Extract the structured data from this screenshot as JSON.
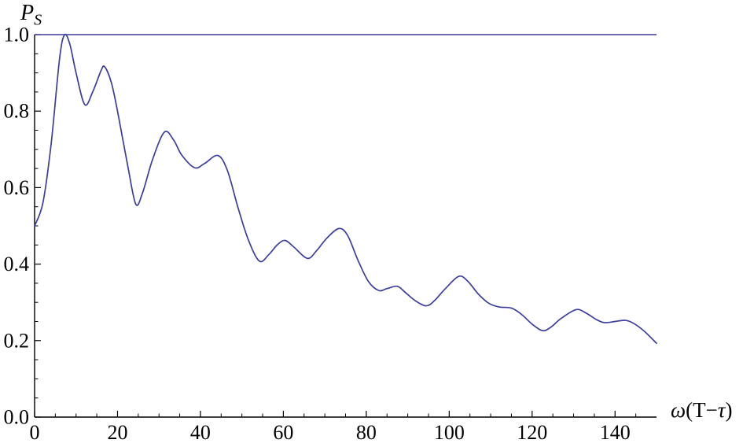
{
  "page": {
    "background": "#ffffff"
  },
  "chart_data": {
    "type": "line",
    "title": "",
    "ylabel": {
      "base": "P",
      "subscript": "S"
    },
    "xlabel": {
      "omega": "ω",
      "open_t": "(T−",
      "tau": "τ",
      "close": ")"
    },
    "xlim": [
      0,
      150
    ],
    "ylim": [
      0,
      1
    ],
    "grid": false,
    "legend": null,
    "axes": {
      "x_ticks": {
        "major": [
          0,
          20,
          40,
          60,
          80,
          100,
          120,
          140
        ],
        "labels": [
          "0",
          "20",
          "40",
          "60",
          "80",
          "100",
          "120",
          "140"
        ],
        "minor_step": 5
      },
      "y_ticks": {
        "major": [
          0,
          0.2,
          0.4,
          0.6,
          0.8,
          1.0
        ],
        "labels": [
          "0.0",
          "0.2",
          "0.4",
          "0.6",
          "0.8",
          "1.0"
        ],
        "minor_step": 0.05
      }
    },
    "colors": {
      "series": "#3c3d9e",
      "axis": "#000000",
      "text": "#000000"
    },
    "series": [
      {
        "name": "upper-bound-line",
        "type": "hline",
        "y": 1.0,
        "x_range": [
          0,
          150
        ]
      },
      {
        "name": "survival-probability",
        "type": "smooth-line",
        "points": [
          [
            0,
            0.5
          ],
          [
            2,
            0.56
          ],
          [
            4,
            0.715
          ],
          [
            6,
            0.935
          ],
          [
            7.2,
            0.999
          ],
          [
            8.5,
            0.975
          ],
          [
            10,
            0.9
          ],
          [
            12.1,
            0.817
          ],
          [
            14,
            0.85
          ],
          [
            16,
            0.905
          ],
          [
            16.9,
            0.916
          ],
          [
            18.5,
            0.875
          ],
          [
            20,
            0.8
          ],
          [
            22.5,
            0.655
          ],
          [
            24.4,
            0.557
          ],
          [
            26,
            0.585
          ],
          [
            28.5,
            0.675
          ],
          [
            31.3,
            0.745
          ],
          [
            33.5,
            0.725
          ],
          [
            35.5,
            0.685
          ],
          [
            38.6,
            0.652
          ],
          [
            41,
            0.663
          ],
          [
            44.2,
            0.684
          ],
          [
            46.5,
            0.645
          ],
          [
            49,
            0.55
          ],
          [
            51.5,
            0.465
          ],
          [
            54.2,
            0.408
          ],
          [
            56.5,
            0.425
          ],
          [
            58.5,
            0.45
          ],
          [
            60.4,
            0.462
          ],
          [
            62.5,
            0.445
          ],
          [
            65.8,
            0.415
          ],
          [
            68,
            0.435
          ],
          [
            70.5,
            0.468
          ],
          [
            73.4,
            0.493
          ],
          [
            75.5,
            0.475
          ],
          [
            78,
            0.41
          ],
          [
            80.5,
            0.355
          ],
          [
            83,
            0.331
          ],
          [
            85,
            0.336
          ],
          [
            87.5,
            0.342
          ],
          [
            89.5,
            0.325
          ],
          [
            92,
            0.303
          ],
          [
            94.5,
            0.291
          ],
          [
            96.5,
            0.305
          ],
          [
            99,
            0.335
          ],
          [
            102.3,
            0.368
          ],
          [
            104.5,
            0.355
          ],
          [
            107,
            0.322
          ],
          [
            109.5,
            0.298
          ],
          [
            112,
            0.288
          ],
          [
            115,
            0.285
          ],
          [
            117.5,
            0.268
          ],
          [
            120,
            0.243
          ],
          [
            122.5,
            0.226
          ],
          [
            124.5,
            0.235
          ],
          [
            127,
            0.258
          ],
          [
            130.6,
            0.281
          ],
          [
            133,
            0.272
          ],
          [
            135.5,
            0.255
          ],
          [
            137.5,
            0.247
          ],
          [
            140,
            0.25
          ],
          [
            142.5,
            0.253
          ],
          [
            144.5,
            0.245
          ],
          [
            147,
            0.225
          ],
          [
            150,
            0.193
          ]
        ]
      }
    ]
  }
}
